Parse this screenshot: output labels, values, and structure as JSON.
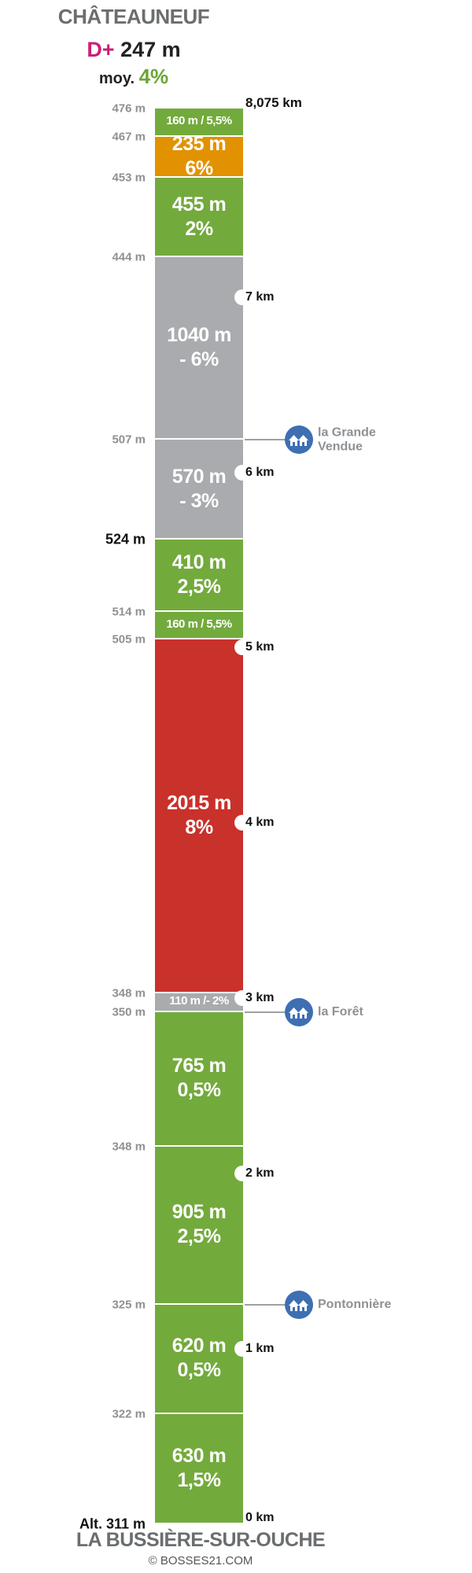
{
  "header": {
    "town": "CHÂTEAUNEUF",
    "dplus_prefix": "D+",
    "dplus_value": "247 m",
    "avg_prefix": "moy.",
    "avg_value": "4%"
  },
  "total_distance": "8,075 km",
  "segments": [
    {
      "length_m": 160,
      "grade_pct": 5.5,
      "label1": "160 m / 5,5%",
      "label2": "",
      "color": "#73aa3c"
    },
    {
      "length_m": 235,
      "grade_pct": 6,
      "label1": "235 m",
      "label2": "6%",
      "color": "#e29200"
    },
    {
      "length_m": 455,
      "grade_pct": 2,
      "label1": "455 m",
      "label2": "2%",
      "color": "#73aa3c"
    },
    {
      "length_m": 1040,
      "grade_pct": -6,
      "label1": "1040 m",
      "label2": "- 6%",
      "color": "#a9abae"
    },
    {
      "length_m": 570,
      "grade_pct": -3,
      "label1": "570 m",
      "label2": "- 3%",
      "color": "#a9abae"
    },
    {
      "length_m": 410,
      "grade_pct": 2.5,
      "label1": "410 m",
      "label2": "2,5%",
      "color": "#73aa3c"
    },
    {
      "length_m": 160,
      "grade_pct": 5.5,
      "label1": "160 m / 5,5%",
      "label2": "",
      "color": "#73aa3c"
    },
    {
      "length_m": 2015,
      "grade_pct": 8,
      "label1": "2015 m",
      "label2": "8%",
      "color": "#c9312b"
    },
    {
      "length_m": 110,
      "grade_pct": -2,
      "label1": "110 m /- 2%",
      "label2": "",
      "color": "#a9abae"
    },
    {
      "length_m": 765,
      "grade_pct": 0.5,
      "label1": "765 m",
      "label2": "0,5%",
      "color": "#73aa3c"
    },
    {
      "length_m": 905,
      "grade_pct": 2.5,
      "label1": "905 m",
      "label2": "2,5%",
      "color": "#73aa3c"
    },
    {
      "length_m": 620,
      "grade_pct": 0.5,
      "label1": "620 m",
      "label2": "0,5%",
      "color": "#73aa3c"
    },
    {
      "length_m": 630,
      "grade_pct": 1.5,
      "label1": "630 m",
      "label2": "1,5%",
      "color": "#73aa3c"
    }
  ],
  "altitudes": [
    {
      "label": "476 m",
      "dist_km": 8.075,
      "emphasis": false
    },
    {
      "label": "467 m",
      "dist_km": 7.915,
      "emphasis": false
    },
    {
      "label": "453 m",
      "dist_km": 7.68,
      "emphasis": false
    },
    {
      "label": "444 m",
      "dist_km": 7.225,
      "emphasis": false
    },
    {
      "label": "507 m",
      "dist_km": 6.185,
      "emphasis": false
    },
    {
      "label": "524 m",
      "dist_km": 5.615,
      "emphasis": true
    },
    {
      "label": "514 m",
      "dist_km": 5.205,
      "emphasis": false
    },
    {
      "label": "505 m",
      "dist_km": 5.045,
      "emphasis": false
    },
    {
      "label": "348 m",
      "dist_km": 3.03,
      "emphasis": false
    },
    {
      "label": "350 m",
      "dist_km": 2.92,
      "emphasis": false
    },
    {
      "label": "348 m",
      "dist_km": 2.155,
      "emphasis": false
    },
    {
      "label": "325 m",
      "dist_km": 1.25,
      "emphasis": false
    },
    {
      "label": "322 m",
      "dist_km": 0.63,
      "emphasis": false
    },
    {
      "label": "Alt. 311 m",
      "dist_km": 0,
      "emphasis": true
    }
  ],
  "km_markers": [
    {
      "label": "7 km",
      "km": 7
    },
    {
      "label": "6 km",
      "km": 6
    },
    {
      "label": "5 km",
      "km": 5
    },
    {
      "label": "4 km",
      "km": 4
    },
    {
      "label": "3 km",
      "km": 3
    },
    {
      "label": "2 km",
      "km": 2
    },
    {
      "label": "1 km",
      "km": 1
    },
    {
      "label": "0 km",
      "km": 0
    }
  ],
  "pois": [
    {
      "name": "la Grande Vendue",
      "line1": "la Grande",
      "line2": "Vendue",
      "dist_km": 6.185,
      "icon": "village-icon"
    },
    {
      "name": "la Forêt",
      "line1": "la Forêt",
      "line2": "",
      "dist_km": 2.92,
      "icon": "village-icon"
    },
    {
      "name": "Pontonnière",
      "line1": "Pontonnière",
      "line2": "",
      "dist_km": 1.25,
      "icon": "village-icon"
    }
  ],
  "footer": {
    "town": "LA BUSSIÈRE-SUR-OUCHE",
    "copyright": "© BOSSES21.COM"
  }
}
